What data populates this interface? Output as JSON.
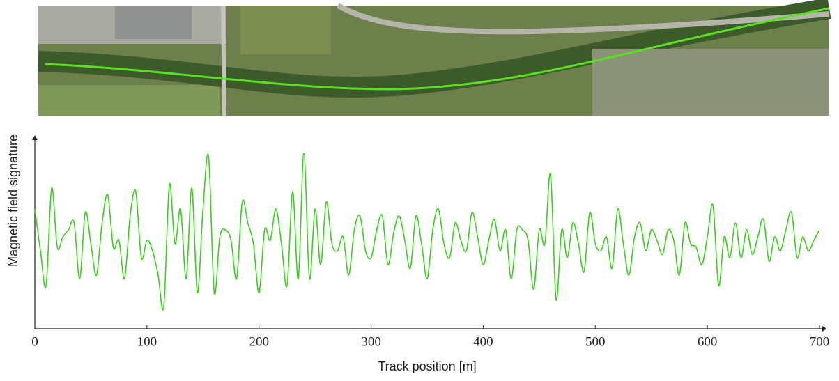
{
  "chart_data": {
    "type": "line",
    "x_label": "Track position [m]",
    "y_label": "Magnetic field signature",
    "x": [
      0,
      5,
      10,
      15,
      20,
      25,
      30,
      35,
      40,
      45,
      50,
      55,
      60,
      65,
      70,
      75,
      80,
      85,
      90,
      95,
      100,
      105,
      110,
      115,
      120,
      125,
      130,
      135,
      140,
      145,
      150,
      155,
      160,
      165,
      170,
      175,
      180,
      185,
      190,
      195,
      200,
      205,
      210,
      215,
      220,
      225,
      230,
      235,
      240,
      245,
      250,
      255,
      260,
      265,
      270,
      275,
      280,
      285,
      290,
      295,
      300,
      305,
      310,
      315,
      320,
      325,
      330,
      335,
      340,
      345,
      350,
      355,
      360,
      365,
      370,
      375,
      380,
      385,
      390,
      395,
      400,
      405,
      410,
      415,
      420,
      425,
      430,
      435,
      440,
      445,
      450,
      455,
      460,
      465,
      470,
      475,
      480,
      485,
      490,
      495,
      500,
      505,
      510,
      515,
      520,
      525,
      530,
      535,
      540,
      545,
      550,
      555,
      560,
      565,
      570,
      575,
      580,
      585,
      590,
      595,
      600,
      605,
      610,
      615,
      620,
      625,
      630,
      635,
      640,
      645,
      650,
      655,
      660,
      665,
      670,
      675,
      680,
      685,
      690,
      695,
      700
    ],
    "series": [
      {
        "color": "#3ccf1e",
        "values": [
          172,
          112,
          62,
          202,
          117,
          132,
          142,
          152,
          72,
          167,
          122,
          77,
          152,
          192,
          117,
          127,
          72,
          162,
          197,
          102,
          127,
          112,
          77,
          32,
          207,
          122,
          172,
          72,
          202,
          52,
          172,
          247,
          52,
          132,
          142,
          127,
          72,
          182,
          152,
          122,
          52,
          142,
          127,
          172,
          122,
          62,
          197,
          72,
          252,
          72,
          172,
          92,
          182,
          122,
          112,
          132,
          77,
          142,
          162,
          112,
          102,
          142,
          162,
          92,
          137,
          162,
          127,
          87,
          162,
          122,
          72,
          142,
          172,
          122,
          102,
          152,
          127,
          112,
          167,
          132,
          92,
          127,
          157,
          112,
          142,
          72,
          142,
          142,
          127,
          57,
          142,
          122,
          222,
          42,
          142,
          102,
          152,
          122,
          82,
          167,
          122,
          112,
          132,
          87,
          172,
          122,
          77,
          132,
          152,
          112,
          142,
          127,
          107,
          142,
          127,
          77,
          152,
          122,
          117,
          92,
          132,
          177,
          62,
          132,
          102,
          152,
          102,
          142,
          107,
          132,
          157,
          97,
          132,
          112,
          142,
          167,
          102,
          132,
          112,
          127,
          142
        ]
      }
    ],
    "xlim": [
      0,
      700
    ],
    "xticks": [
      0,
      100,
      200,
      300,
      400,
      500,
      600,
      700
    ],
    "ylim": [
      0,
      277
    ]
  }
}
